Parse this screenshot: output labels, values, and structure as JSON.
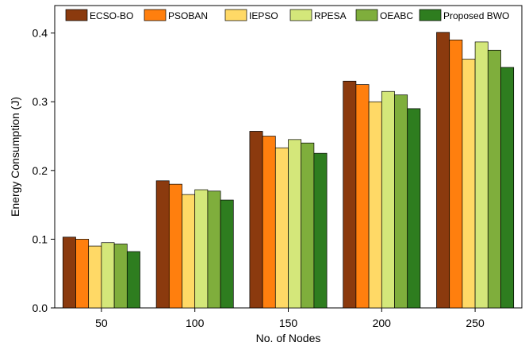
{
  "chart_data": {
    "type": "bar",
    "categories": [
      "50",
      "100",
      "150",
      "200",
      "250"
    ],
    "series": [
      {
        "name": "ECSO-BO",
        "color": "#8B3A0E",
        "values": [
          0.103,
          0.185,
          0.257,
          0.33,
          0.401
        ]
      },
      {
        "name": "PSOBAN",
        "color": "#FF7F0E",
        "values": [
          0.1,
          0.18,
          0.25,
          0.325,
          0.39
        ]
      },
      {
        "name": "IEPSO",
        "color": "#FFD966",
        "values": [
          0.09,
          0.165,
          0.233,
          0.3,
          0.362
        ]
      },
      {
        "name": "RPESA",
        "color": "#D4E77A",
        "values": [
          0.095,
          0.172,
          0.245,
          0.315,
          0.387
        ]
      },
      {
        "name": "OEABC",
        "color": "#7FAE3C",
        "values": [
          0.093,
          0.17,
          0.24,
          0.31,
          0.375
        ]
      },
      {
        "name": "Proposed BWO",
        "color": "#2E7D1F",
        "values": [
          0.082,
          0.157,
          0.225,
          0.29,
          0.35
        ]
      }
    ],
    "xlabel": "No. of Nodes",
    "ylabel": "Energy Consumption (J)",
    "ylim": [
      0,
      0.44
    ],
    "yticks": [
      "0.0",
      "0.1",
      "0.2",
      "0.3",
      "0.4"
    ],
    "grid": false,
    "legend": "top"
  }
}
